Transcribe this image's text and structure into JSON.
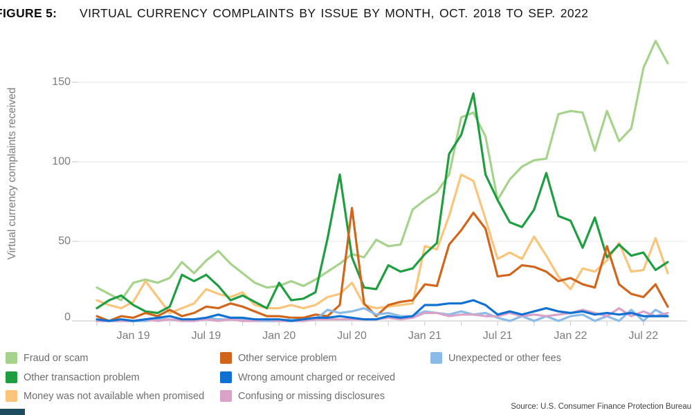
{
  "figure": {
    "label": "FIGURE 5:",
    "title": "VIRTUAL CURRENCY COMPLAINTS BY ISSUE BY MONTH, OCT. 2018 TO SEP. 2022"
  },
  "source": "Source: U.S. Consumer Finance Protection Bureau",
  "chart_data": {
    "type": "line",
    "title": "Virtual currency complaints by issue by month, Oct. 2018 to Sep. 2022",
    "xlabel": "",
    "ylabel": "Virtual currency complaints received",
    "ylim": [
      0,
      180
    ],
    "yticks": [
      0,
      50,
      100,
      150
    ],
    "grid": "horizontal",
    "legend_position": "bottom",
    "x": [
      "Oct 18",
      "Nov 18",
      "Dec 18",
      "Jan 19",
      "Feb 19",
      "Mar 19",
      "Apr 19",
      "May 19",
      "Jun 19",
      "Jul 19",
      "Aug 19",
      "Sep 19",
      "Oct 19",
      "Nov 19",
      "Dec 19",
      "Jan 20",
      "Feb 20",
      "Mar 20",
      "Apr 20",
      "May 20",
      "Jun 20",
      "Jul 20",
      "Aug 20",
      "Sep 20",
      "Oct 20",
      "Nov 20",
      "Dec 20",
      "Jan 21",
      "Feb 21",
      "Mar 21",
      "Apr 21",
      "May 21",
      "Jun 21",
      "Jul 21",
      "Aug 21",
      "Sep 21",
      "Oct 21",
      "Nov 21",
      "Dec 21",
      "Jan 22",
      "Feb 22",
      "Mar 22",
      "Apr 22",
      "May 22",
      "Jun 22",
      "Jul 22",
      "Aug 22",
      "Sep 22"
    ],
    "x_tick_labels": [
      "Jan 19",
      "Jul 19",
      "Jan 20",
      "Jul 20",
      "Jan 21",
      "Jul 21",
      "Jan 22",
      "Jul 22"
    ],
    "x_tick_label_indices": [
      3,
      9,
      15,
      21,
      27,
      33,
      39,
      45
    ],
    "series": [
      {
        "name": "Fraud or scam",
        "color": "#a5d38b",
        "values": [
          21,
          17,
          13,
          24,
          26,
          24,
          27,
          37,
          30,
          38,
          44,
          36,
          30,
          24,
          21,
          22,
          25,
          22,
          26,
          31,
          36,
          42,
          40,
          51,
          47,
          48,
          70,
          76,
          81,
          92,
          128,
          131,
          116,
          76,
          89,
          97,
          101,
          102,
          130,
          132,
          131,
          107,
          132,
          113,
          121,
          159,
          176,
          162
        ]
      },
      {
        "name": "Other transaction problem",
        "color": "#1e9e40",
        "values": [
          8,
          13,
          16,
          10,
          6,
          5,
          9,
          29,
          25,
          29,
          22,
          13,
          16,
          12,
          8,
          24,
          13,
          14,
          18,
          52,
          92,
          40,
          21,
          20,
          35,
          31,
          33,
          42,
          49,
          105,
          117,
          143,
          92,
          76,
          62,
          59,
          70,
          93,
          66,
          63,
          46,
          65,
          40,
          48,
          41,
          43,
          32,
          37
        ]
      },
      {
        "name": "Money was not available when promised",
        "color": "#fac47b",
        "values": [
          13,
          10,
          8,
          12,
          25,
          15,
          5,
          8,
          11,
          20,
          17,
          15,
          18,
          10,
          8,
          8,
          10,
          8,
          10,
          15,
          17,
          24,
          10,
          8,
          9,
          10,
          11,
          47,
          45,
          66,
          92,
          88,
          64,
          39,
          43,
          39,
          53,
          41,
          28,
          20,
          33,
          31,
          38,
          49,
          31,
          32,
          52,
          30
        ]
      },
      {
        "name": "Other service problem",
        "color": "#d2651c",
        "values": [
          3,
          0,
          3,
          2,
          5,
          3,
          7,
          3,
          5,
          9,
          8,
          11,
          9,
          6,
          3,
          3,
          2,
          2,
          4,
          3,
          10,
          71,
          11,
          3,
          10,
          12,
          13,
          23,
          22,
          48,
          57,
          68,
          58,
          28,
          29,
          35,
          34,
          31,
          25,
          27,
          23,
          21,
          47,
          23,
          17,
          15,
          23,
          9
        ]
      },
      {
        "name": "Wrong amount charged or received",
        "color": "#1171d2",
        "values": [
          1,
          0,
          1,
          0,
          1,
          2,
          3,
          1,
          1,
          2,
          4,
          2,
          2,
          1,
          1,
          1,
          0,
          1,
          2,
          2,
          3,
          2,
          1,
          1,
          3,
          2,
          3,
          10,
          10,
          11,
          11,
          13,
          10,
          4,
          6,
          4,
          6,
          8,
          6,
          5,
          6,
          4,
          5,
          4,
          5,
          3,
          3,
          3
        ]
      },
      {
        "name": "Confusing or missing disclosures",
        "color": "#dba2c8",
        "values": [
          0,
          0,
          0,
          0,
          1,
          0,
          1,
          0,
          0,
          1,
          0,
          1,
          0,
          0,
          1,
          0,
          0,
          0,
          1,
          1,
          1,
          1,
          1,
          1,
          2,
          1,
          2,
          5,
          5,
          3,
          4,
          4,
          3,
          3,
          5,
          3,
          4,
          3,
          4,
          5,
          7,
          5,
          3,
          8,
          3,
          6,
          3,
          5
        ]
      },
      {
        "name": "Unexpected or other fees",
        "color": "#8abae8",
        "values": [
          0,
          0,
          0,
          0,
          0,
          1,
          1,
          0,
          1,
          2,
          1,
          1,
          1,
          0,
          0,
          0,
          1,
          0,
          1,
          7,
          5,
          6,
          8,
          4,
          5,
          3,
          3,
          6,
          5,
          4,
          6,
          4,
          5,
          2,
          0,
          3,
          0,
          3,
          0,
          3,
          4,
          0,
          3,
          0,
          7,
          0,
          7,
          3
        ]
      }
    ]
  }
}
